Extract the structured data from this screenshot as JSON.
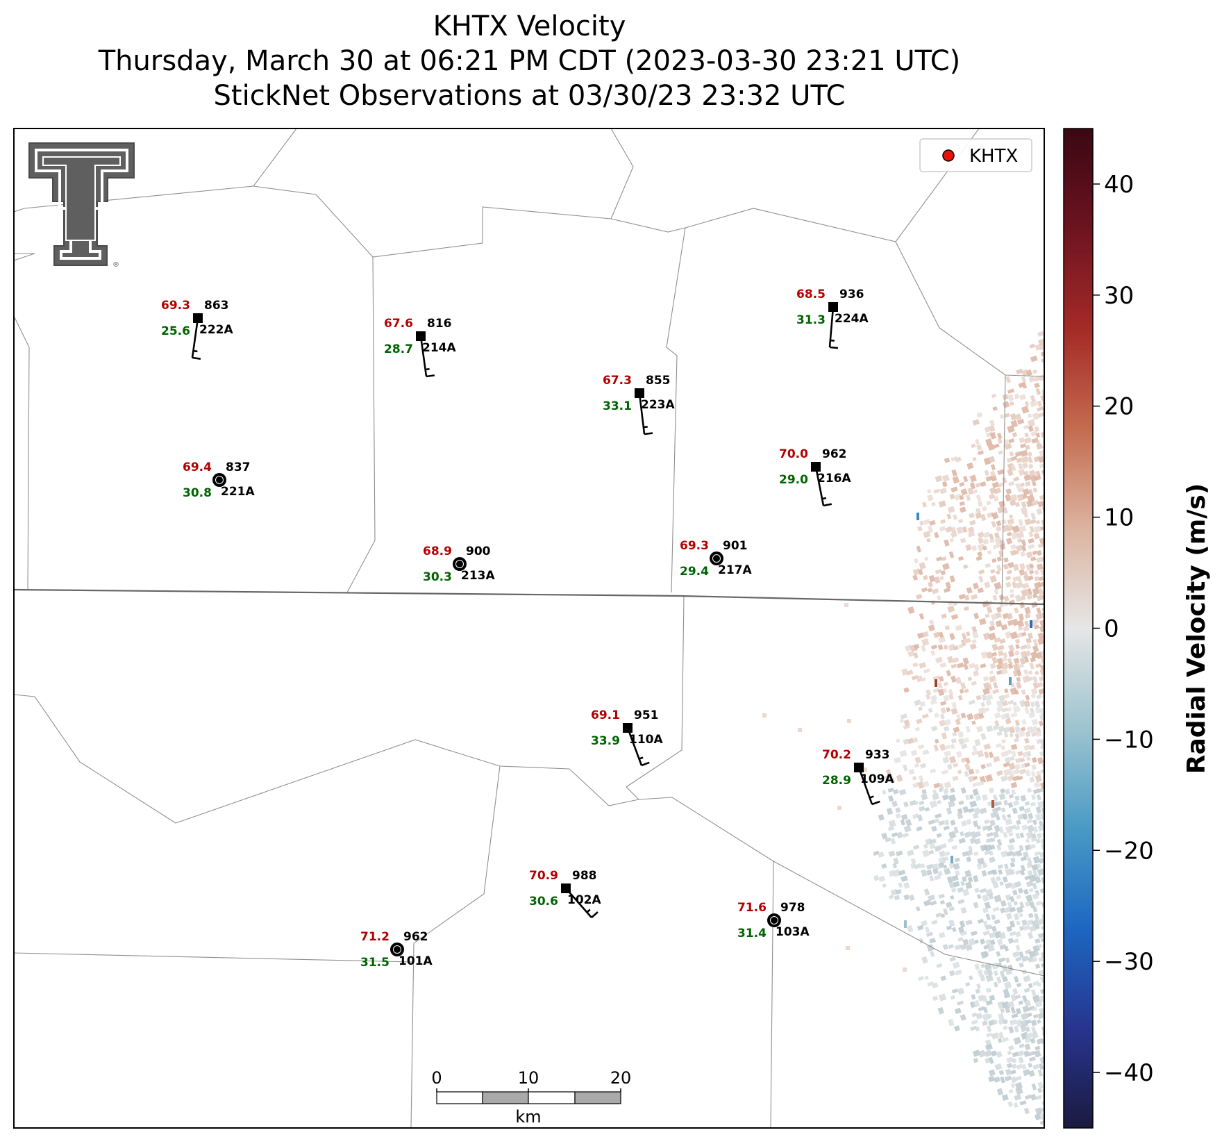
{
  "title": {
    "line1": "KHTX Velocity",
    "line2": "Thursday, March 30 at 06:21 PM CDT (2023-03-30 23:21 UTC)",
    "line3": "StickNet Observations at 03/30/23 23:32 UTC"
  },
  "legend": {
    "label": "KHTX",
    "marker_color": "#e8120c"
  },
  "colorbar": {
    "label": "Radial Velocity (m/s)",
    "ticks": [
      "40",
      "30",
      "20",
      "10",
      "0",
      "−10",
      "−20",
      "−30",
      "−40"
    ],
    "range": [
      -45,
      45
    ],
    "colors": [
      "#1b1a3f",
      "#27358f",
      "#1d67c1",
      "#4a9ac5",
      "#9ec4cf",
      "#dde2e3",
      "#e9e1dd",
      "#dcb3a0",
      "#c36b4f",
      "#a42a27",
      "#6d1320",
      "#3a0812"
    ]
  },
  "scale_bar": {
    "ticks": [
      "0",
      "10",
      "20"
    ],
    "unit": "km"
  },
  "logo": {
    "name": "Texas Tech Double T"
  },
  "stations": [
    {
      "id": "222A",
      "temp": "69.3",
      "dew": "25.6",
      "pres": "863",
      "marker": "square"
    },
    {
      "id": "214A",
      "temp": "67.6",
      "dew": "28.7",
      "pres": "816",
      "marker": "square"
    },
    {
      "id": "223A",
      "temp": "67.3",
      "dew": "33.1",
      "pres": "855",
      "marker": "square"
    },
    {
      "id": "224A",
      "temp": "68.5",
      "dew": "31.3",
      "pres": "936",
      "marker": "square"
    },
    {
      "id": "221A",
      "temp": "69.4",
      "dew": "30.8",
      "pres": "837",
      "marker": "circle"
    },
    {
      "id": "216A",
      "temp": "70.0",
      "dew": "29.0",
      "pres": "962",
      "marker": "square"
    },
    {
      "id": "213A",
      "temp": "68.9",
      "dew": "30.3",
      "pres": "900",
      "marker": "circle"
    },
    {
      "id": "217A",
      "temp": "69.3",
      "dew": "29.4",
      "pres": "901",
      "marker": "circle"
    },
    {
      "id": "110A",
      "temp": "69.1",
      "dew": "33.9",
      "pres": "951",
      "marker": "square"
    },
    {
      "id": "109A",
      "temp": "70.2",
      "dew": "28.9",
      "pres": "933",
      "marker": "square"
    },
    {
      "id": "102A",
      "temp": "70.9",
      "dew": "30.6",
      "pres": "988",
      "marker": "square"
    },
    {
      "id": "103A",
      "temp": "71.6",
      "dew": "31.4",
      "pres": "978",
      "marker": "circle"
    },
    {
      "id": "101A",
      "temp": "71.2",
      "dew": "31.5",
      "pres": "962",
      "marker": "circle"
    }
  ]
}
